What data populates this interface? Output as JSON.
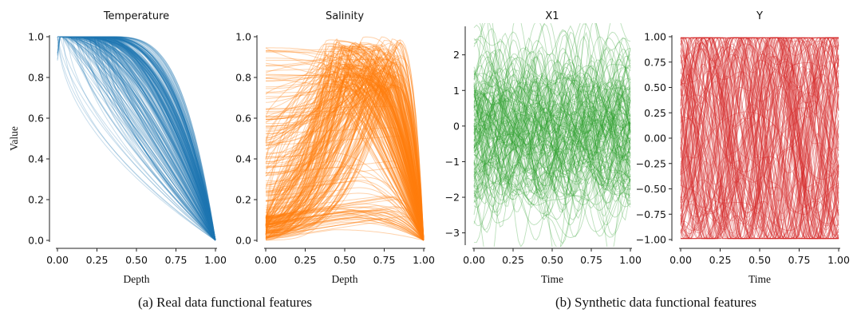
{
  "chart_data": [
    {
      "type": "line",
      "title": "Temperature",
      "xlabel": "Depth",
      "ylabel": "Value",
      "xlim": [
        0,
        1
      ],
      "ylim": [
        0,
        1
      ],
      "xticks": [
        "0.00",
        "0.25",
        "0.50",
        "0.75",
        "1.00"
      ],
      "yticks": [
        "0.0",
        "0.2",
        "0.4",
        "0.6",
        "0.8",
        "1.0"
      ],
      "color": "#1f77b4",
      "curve_count": 300,
      "description_series": [
        {
          "name": "",
          "x": [
            0.0,
            0.25,
            0.5,
            0.75,
            1.0
          ],
          "y": [
            1.0,
            0.95,
            0.65,
            0.3,
            0.0
          ]
        }
      ]
    },
    {
      "type": "line",
      "title": "Salinity",
      "xlabel": "Depth",
      "ylabel": "",
      "xlim": [
        0,
        1
      ],
      "ylim": [
        0,
        1
      ],
      "xticks": [
        "0.00",
        "0.25",
        "0.50",
        "0.75",
        "1.00"
      ],
      "yticks": [
        "0.0",
        "0.2",
        "0.4",
        "0.6",
        "0.8",
        "1.0"
      ],
      "color": "#ff7f0e",
      "curve_count": 300,
      "description_series": [
        {
          "name": "",
          "x": [
            0.0,
            0.25,
            0.5,
            0.75,
            1.0
          ],
          "y": [
            0.2,
            0.6,
            0.95,
            0.85,
            0.0
          ]
        }
      ]
    },
    {
      "type": "line",
      "title": "X1",
      "xlabel": "Time",
      "ylabel": "",
      "xlim": [
        0,
        1
      ],
      "ylim": [
        -3.3,
        2.8
      ],
      "xticks": [
        "0.00",
        "0.25",
        "0.50",
        "0.75",
        "1.00"
      ],
      "yticks": [
        "−3",
        "−2",
        "−1",
        "0",
        "1",
        "2"
      ],
      "ytick_values": [
        -3,
        -2,
        -1,
        0,
        1,
        2
      ],
      "color": "#2ca02c",
      "curve_count": 150
    },
    {
      "type": "line",
      "title": "Y",
      "xlabel": "Time",
      "ylabel": "",
      "xlim": [
        0,
        1
      ],
      "ylim": [
        -1.0,
        1.0
      ],
      "xticks": [
        "0.00",
        "0.25",
        "0.50",
        "0.75",
        "1.00"
      ],
      "yticks": [
        "−1.00",
        "−0.75",
        "−0.50",
        "−0.25",
        "0.00",
        "0.25",
        "0.50",
        "0.75",
        "1.00"
      ],
      "ytick_values": [
        -1.0,
        -0.75,
        -0.5,
        -0.25,
        0.0,
        0.25,
        0.5,
        0.75,
        1.0
      ],
      "color": "#d62728",
      "curve_count": 150
    }
  ],
  "captions": {
    "a": "(a)  Real data functional features",
    "b": "(b)  Synthetic data functional features"
  }
}
